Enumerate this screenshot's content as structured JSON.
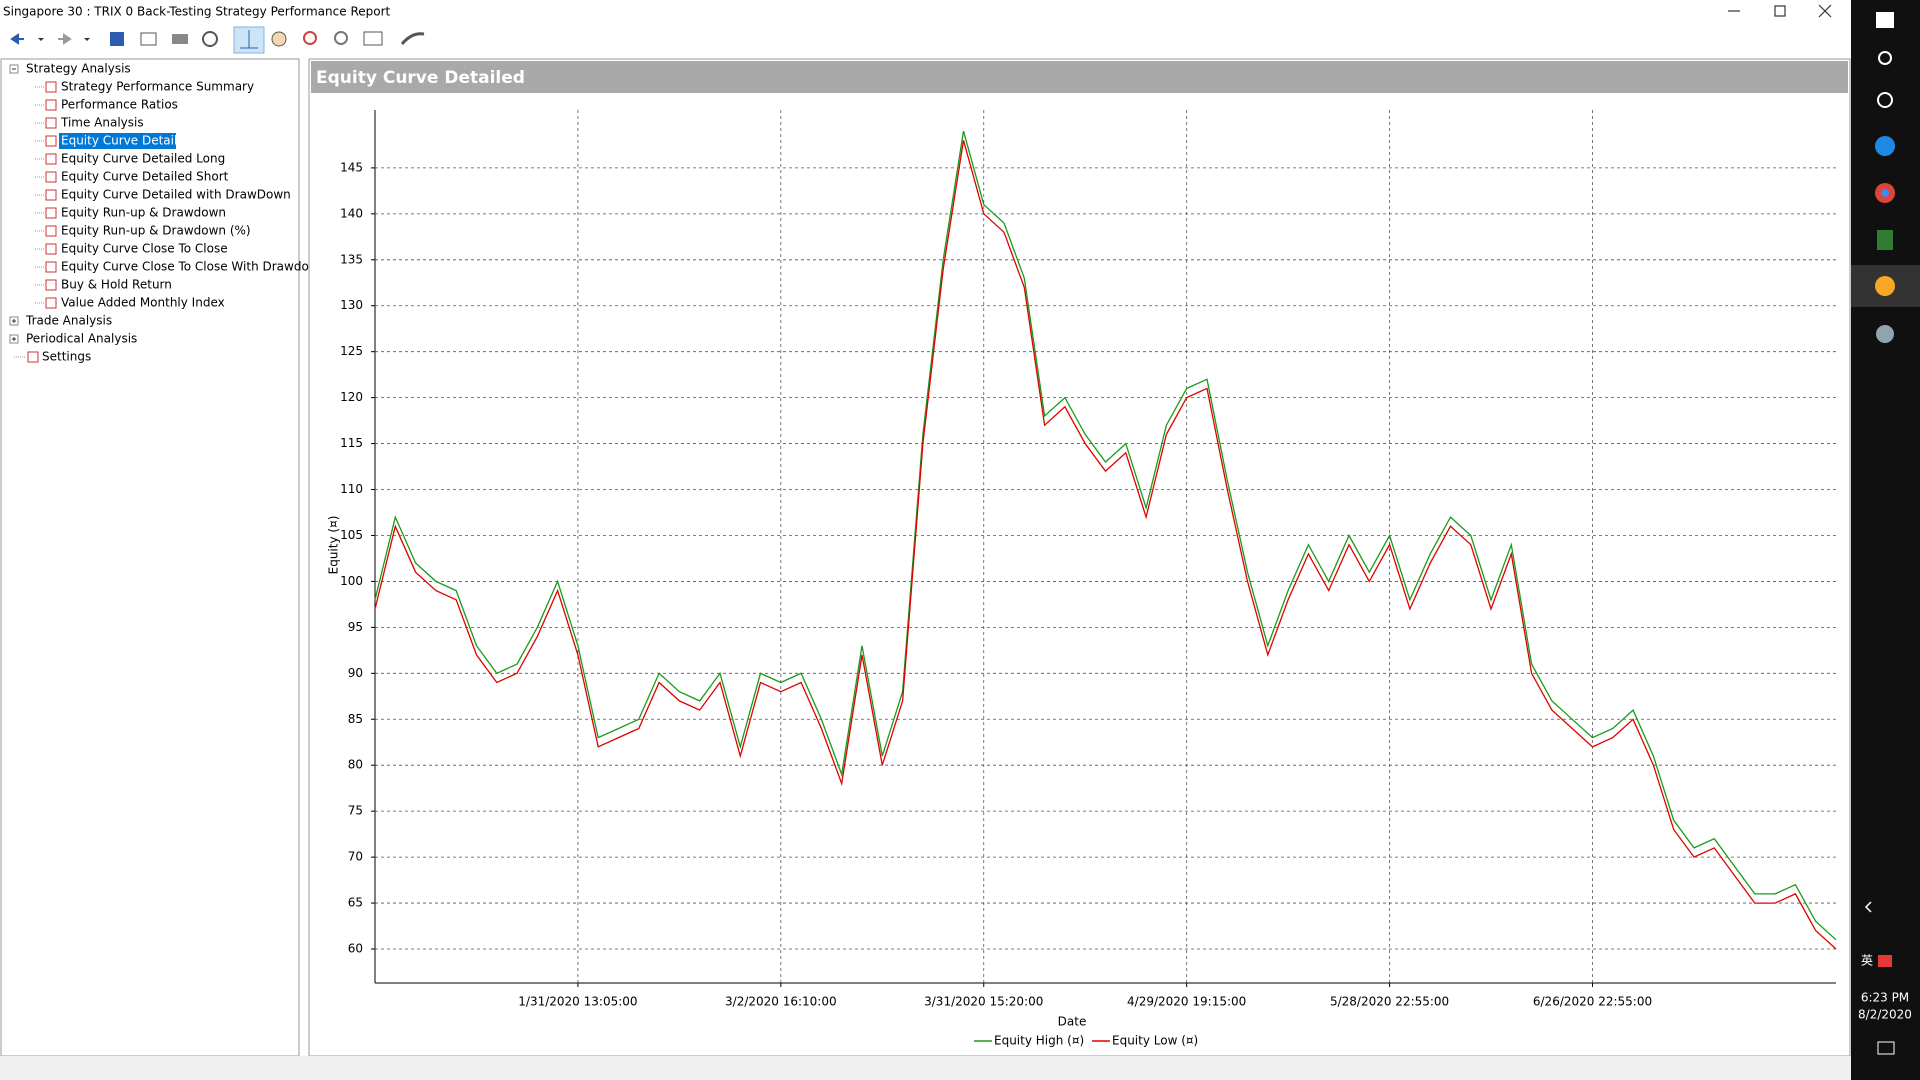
{
  "window": {
    "title": "Singapore 30 : TRIX 0 Back-Testing Strategy Performance Report"
  },
  "tree": [
    {
      "label": "Strategy Analysis",
      "children": [
        "Strategy Performance Summary",
        "Performance Ratios",
        "Time Analysis",
        "Equity Curve Detailed",
        "Equity Curve Detailed Long",
        "Equity Curve Detailed Short",
        "Equity Curve Detailed with DrawDown",
        "Equity Run-up & Drawdown",
        "Equity Run-up & Drawdown (%)",
        "Equity Curve Close To Close",
        "Equity Curve Close To Close With Drawdown",
        "Buy & Hold Return",
        "Value Added Monthly Index"
      ]
    },
    {
      "label": "Trade Analysis",
      "children": []
    },
    {
      "label": "Periodical Analysis",
      "children": []
    },
    {
      "label": "Settings",
      "children": []
    }
  ],
  "chart_data": {
    "type": "line",
    "title": "Equity Curve Detailed",
    "x_label": "Date",
    "y_label": "Equity (¤)",
    "categories": [
      null,
      null,
      null,
      null,
      null,
      null,
      null,
      null,
      null,
      null,
      "1/31/2020 13:05:00",
      null,
      null,
      null,
      null,
      null,
      null,
      null,
      null,
      null,
      "3/2/2020 16:10:00",
      null,
      null,
      null,
      null,
      null,
      null,
      null,
      null,
      null,
      "3/31/2020 15:20:00",
      null,
      null,
      null,
      null,
      null,
      null,
      null,
      null,
      null,
      "4/29/2020 19:15:00",
      null,
      null,
      null,
      null,
      null,
      null,
      null,
      null,
      null,
      "5/28/2020 22:55:00",
      null,
      null,
      null,
      null,
      null,
      null,
      null,
      null,
      null,
      "6/26/2020 22:55:00",
      null,
      null,
      null,
      null,
      null,
      null,
      null,
      null,
      null,
      null,
      null,
      null
    ],
    "series": [
      {
        "name": "Equity High (¤)",
        "color": "#1a9a1a",
        "values": [
          98,
          107,
          102,
          100,
          99,
          93,
          90,
          91,
          95,
          100,
          93,
          83,
          84,
          85,
          90,
          88,
          87,
          90,
          82,
          90,
          89,
          90,
          85,
          79,
          93,
          81,
          88,
          116,
          135,
          149,
          141,
          139,
          133,
          118,
          120,
          116,
          113,
          115,
          108,
          117,
          121,
          122,
          111,
          101,
          93,
          99,
          104,
          100,
          105,
          101,
          105,
          98,
          103,
          107,
          105,
          98,
          104,
          91,
          87,
          85,
          83,
          84,
          86,
          81,
          74,
          71,
          72,
          69,
          66,
          66,
          67,
          63,
          61
        ]
      },
      {
        "name": "Equity Low (¤)",
        "color": "#e00000",
        "values": [
          97,
          106,
          101,
          99,
          98,
          92,
          89,
          90,
          94,
          99,
          92,
          82,
          83,
          84,
          89,
          87,
          86,
          89,
          81,
          89,
          88,
          89,
          84,
          78,
          92,
          80,
          87,
          115,
          134,
          148,
          140,
          138,
          132,
          117,
          119,
          115,
          112,
          114,
          107,
          116,
          120,
          121,
          110,
          100,
          92,
          98,
          103,
          99,
          104,
          100,
          104,
          97,
          102,
          106,
          104,
          97,
          103,
          90,
          86,
          84,
          82,
          83,
          85,
          80,
          73,
          70,
          71,
          68,
          65,
          65,
          66,
          62,
          60
        ]
      }
    ],
    "ylim": [
      56.3,
      151.3
    ],
    "yticks": [
      60,
      65,
      70,
      75,
      80,
      85,
      90,
      95,
      100,
      105,
      110,
      115,
      120,
      125,
      130,
      135,
      140,
      145
    ],
    "grid": true,
    "legend": "bottom"
  },
  "taskbar": {
    "ime": "英",
    "time": "6:23 PM",
    "date": "8/2/2020"
  }
}
